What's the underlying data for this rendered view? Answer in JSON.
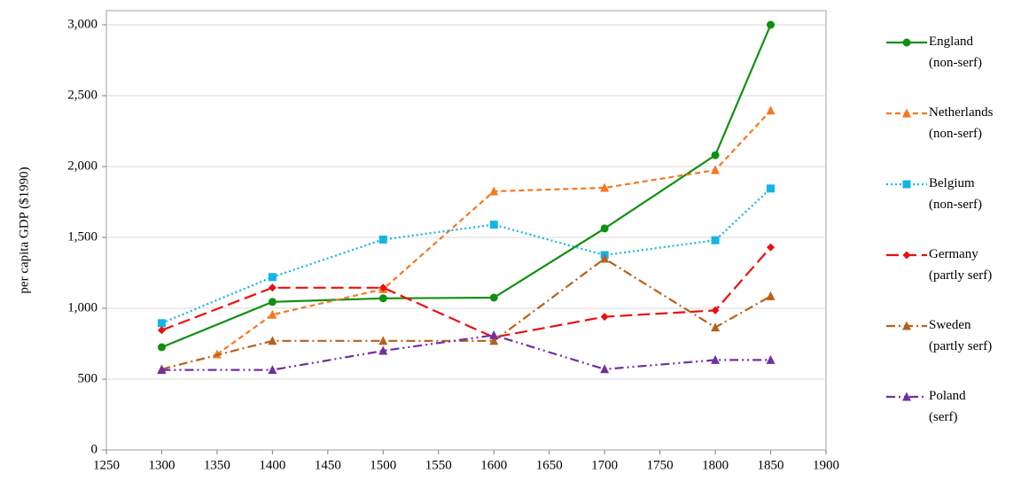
{
  "chart_data": {
    "type": "line",
    "y_label": "per capita GDP ($1990)",
    "xlim": [
      1250,
      1900
    ],
    "xticks": [
      1250,
      1300,
      1350,
      1400,
      1450,
      1500,
      1550,
      1600,
      1650,
      1700,
      1750,
      1800,
      1850,
      1900
    ],
    "ylim": [
      0,
      3000
    ],
    "yticks": [
      0,
      500,
      {
        "value": 1000,
        "label": "1,000"
      },
      {
        "value": 1500,
        "label": "1,500"
      },
      {
        "value": 2000,
        "label": "2,000"
      },
      {
        "value": 2500,
        "label": "2,500"
      },
      {
        "value": 3000,
        "label": "3,000"
      }
    ],
    "grid": true,
    "legend": "right",
    "series": [
      {
        "name": "England (non-serf)",
        "color": "#109010",
        "dash": "solid",
        "marker": "circle",
        "x": [
          1300,
          1400,
          1500,
          1600,
          1700,
          1800,
          1850
        ],
        "values": [
          725,
          1045,
          1070,
          1075,
          1563,
          2080,
          3000
        ]
      },
      {
        "name": "Netherlands (non-serf)",
        "color": "#f5781e",
        "dash": "short",
        "marker": "triangle",
        "x": [
          1350,
          1400,
          1500,
          1600,
          1700,
          1800,
          1850
        ],
        "values": [
          675,
          955,
          1135,
          1825,
          1850,
          1975,
          2395
        ]
      },
      {
        "name": "Belgium (non-serf)",
        "color": "#14b4e6",
        "dash": "dot",
        "marker": "square",
        "x": [
          1300,
          1400,
          1500,
          1600,
          1700,
          1800,
          1850
        ],
        "values": [
          895,
          1220,
          1485,
          1590,
          1375,
          1480,
          1845
        ]
      },
      {
        "name": "Germany (partly serf)",
        "color": "#e81010",
        "dash": "long",
        "marker": "diamond",
        "x": [
          1300,
          1400,
          1500,
          1600,
          1700,
          1800,
          1850
        ],
        "values": [
          845,
          1145,
          1145,
          795,
          940,
          985,
          1430
        ]
      },
      {
        "name": "Sweden (partly serf)",
        "color": "#b8601c",
        "dash": "dashdot",
        "marker": "triangle",
        "x": [
          1300,
          1400,
          1500,
          1600,
          1700,
          1800,
          1850
        ],
        "values": [
          570,
          770,
          770,
          770,
          1350,
          865,
          1085
        ]
      },
      {
        "name": "Poland (serf)",
        "color": "#7030a0",
        "dash": "dashdotdot",
        "marker": "triangle",
        "x": [
          1300,
          1400,
          1500,
          1600,
          1700,
          1800,
          1850
        ],
        "values": [
          565,
          565,
          700,
          810,
          570,
          635,
          635
        ]
      }
    ]
  }
}
